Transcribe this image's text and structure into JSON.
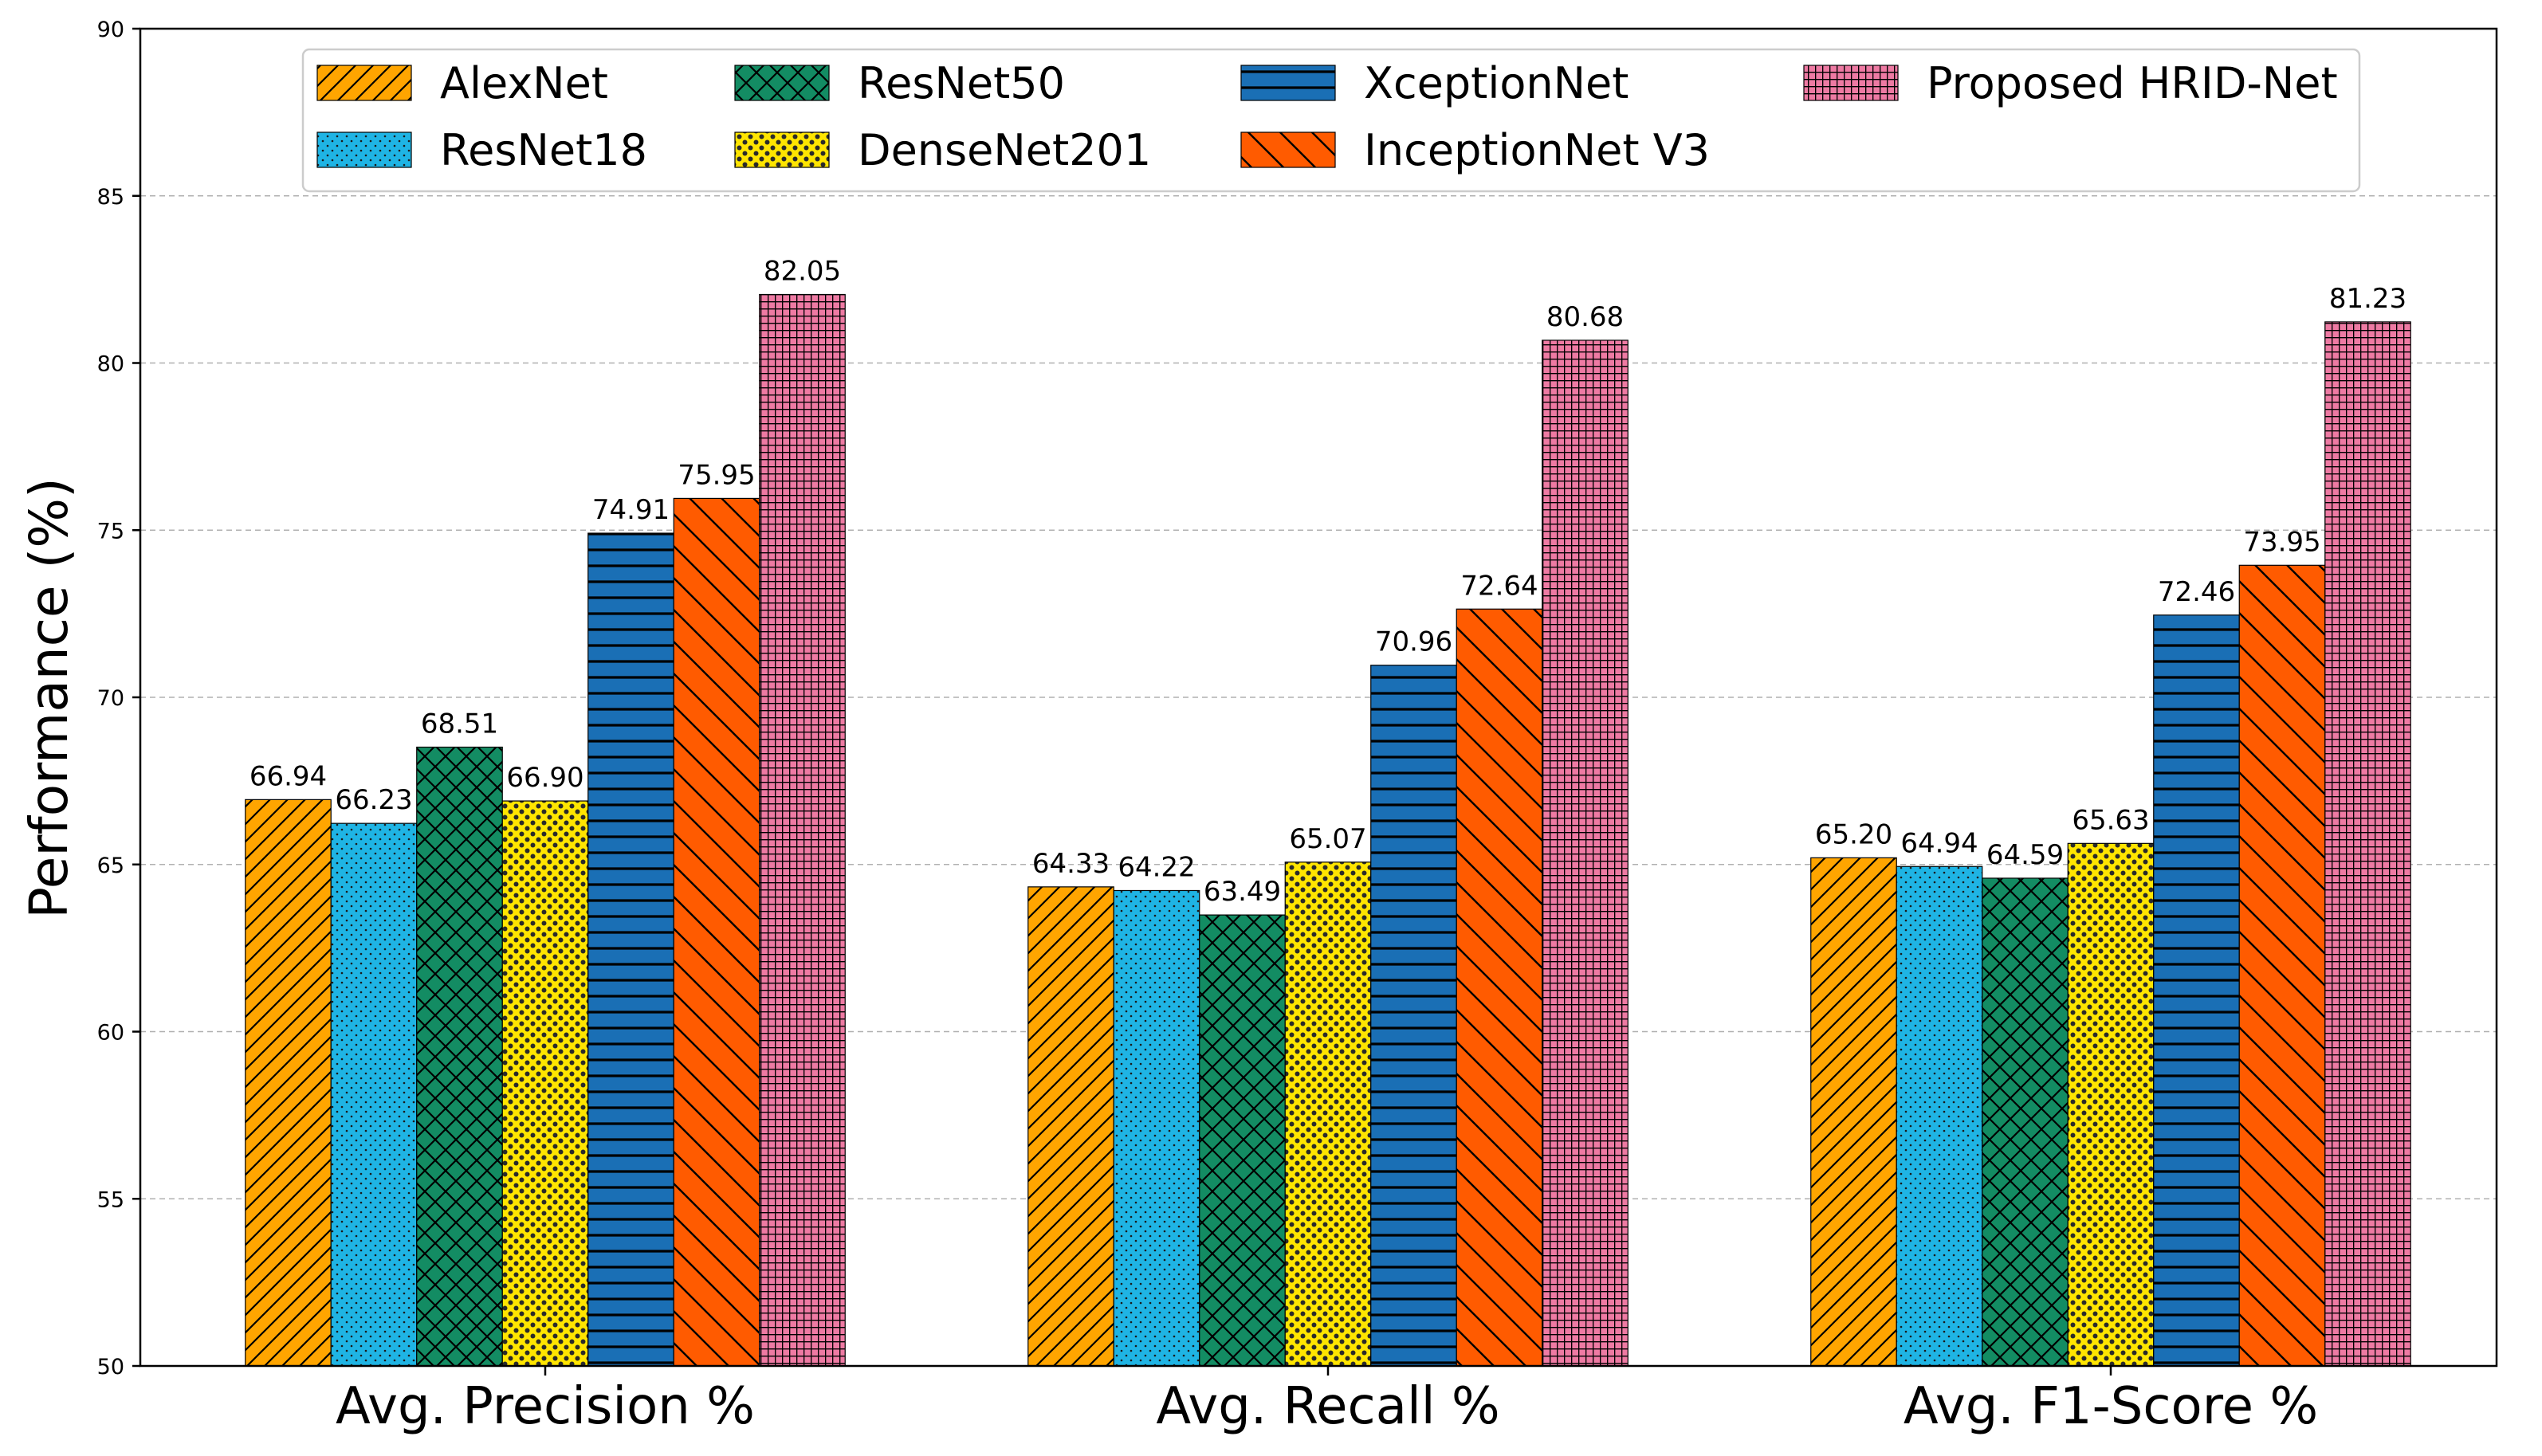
{
  "chart_data": {
    "type": "bar",
    "title": "",
    "xlabel": "",
    "ylabel": "Performance (%)",
    "ylim": [
      50,
      90
    ],
    "yticks": [
      50,
      55,
      60,
      65,
      70,
      75,
      80,
      85,
      90
    ],
    "grid": "horizontal dashed",
    "legend_position": "top",
    "categories": [
      "Avg. Precision %",
      "Avg. Recall %",
      "Avg. F1-Score %"
    ],
    "series": [
      {
        "name": "AlexNet",
        "values": [
          66.94,
          64.33,
          65.2
        ],
        "labels": [
          "66.94",
          "64.33",
          "65.20"
        ],
        "color": "#FFA500",
        "pattern": "forward-diagonal"
      },
      {
        "name": "ResNet18",
        "values": [
          66.23,
          64.22,
          64.94
        ],
        "labels": [
          "66.23",
          "64.22",
          "64.94"
        ],
        "color": "#1FB4E4",
        "pattern": "dots"
      },
      {
        "name": "ResNet50",
        "values": [
          68.51,
          63.49,
          64.59
        ],
        "labels": [
          "68.51",
          "63.49",
          "64.59"
        ],
        "color": "#138C63",
        "pattern": "crosshatch-diagonal"
      },
      {
        "name": "DenseNet201",
        "values": [
          66.9,
          65.07,
          65.63
        ],
        "labels": [
          "66.90",
          "65.07",
          "65.63"
        ],
        "color": "#FFE500",
        "pattern": "dense-dots"
      },
      {
        "name": "XceptionNet",
        "values": [
          74.91,
          70.96,
          72.46
        ],
        "labels": [
          "74.91",
          "70.96",
          "72.46"
        ],
        "color": "#1A6FB5",
        "pattern": "horizontal"
      },
      {
        "name": "InceptionNet V3",
        "values": [
          75.95,
          72.64,
          73.95
        ],
        "labels": [
          "75.95",
          "72.64",
          "73.95"
        ],
        "color": "#FF5B00",
        "pattern": "back-diagonal"
      },
      {
        "name": "Proposed HRID-Net",
        "values": [
          82.05,
          80.68,
          81.23
        ],
        "labels": [
          "82.05",
          "80.68",
          "81.23"
        ],
        "color": "#EE7AA3",
        "pattern": "grid"
      }
    ]
  }
}
